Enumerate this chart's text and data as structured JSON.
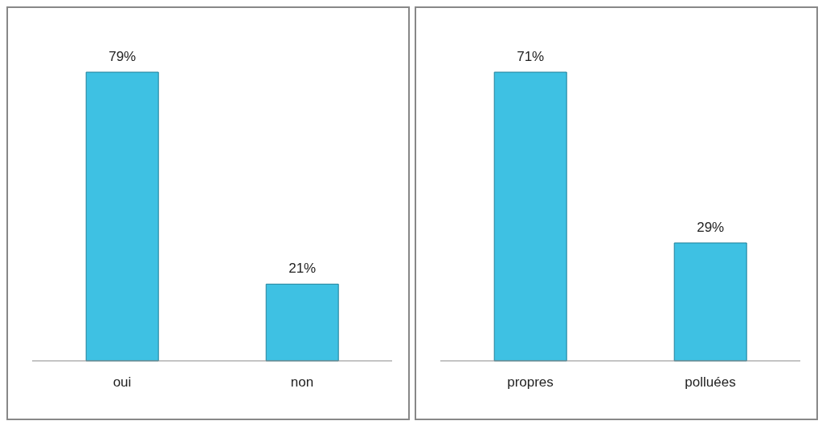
{
  "chart_data": [
    {
      "type": "bar",
      "categories": [
        "oui",
        "non"
      ],
      "values": [
        79,
        21
      ],
      "value_labels": [
        "79%",
        "21%"
      ],
      "color": "#3ec1e3"
    },
    {
      "type": "bar",
      "categories": [
        "propres",
        "polluées"
      ],
      "values": [
        71,
        29
      ],
      "value_labels": [
        "71%",
        "29%"
      ],
      "color": "#3ec1e3"
    }
  ]
}
